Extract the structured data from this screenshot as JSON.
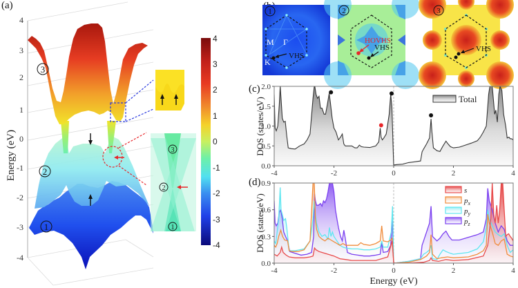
{
  "figure": {
    "panel_labels": [
      "(a)",
      "(b)",
      "(c)",
      "(d)"
    ]
  },
  "panel_a": {
    "ylabel": "Energy (eV)",
    "yticks": [
      "4",
      "3",
      "2",
      "1",
      "0",
      "-1",
      "-2",
      "-3",
      "-4"
    ],
    "band_markers": [
      "3",
      "2",
      "1"
    ],
    "inset_markers": [
      "3",
      "2",
      "1"
    ],
    "colorbar": {
      "ticks": [
        "4",
        "3",
        "2",
        "1",
        "0",
        "-1",
        "-2",
        "-3",
        "-4"
      ],
      "range": [
        -4,
        4
      ],
      "colormap": "jet"
    }
  },
  "panel_b": {
    "maps": [
      {
        "marker": "1",
        "labels": [
          "M",
          "Γ",
          "K",
          "VHS"
        ],
        "theme": "blue"
      },
      {
        "marker": "2",
        "labels": [
          "HOVHS",
          "VHS"
        ],
        "theme": "cyan"
      },
      {
        "marker": "3",
        "labels": [
          "VHS"
        ],
        "theme": "red"
      }
    ],
    "colors": {
      "hovhs": "#e8262a",
      "vhs": "#111111"
    }
  },
  "chart_data": [
    {
      "type": "area",
      "panel": "c",
      "title": "",
      "xlabel": "",
      "ylabel": "DOS (states/eV)",
      "xlim": [
        -4,
        4
      ],
      "ylim": [
        0,
        2.0
      ],
      "xticks": [
        "-4",
        "-2",
        "0",
        "2",
        "4"
      ],
      "yticks": [
        "0.0",
        "0.5",
        "1.0",
        "1.5",
        "2.0"
      ],
      "legend": {
        "position": "top-right",
        "entries": [
          "Total"
        ]
      },
      "series": [
        {
          "name": "Total",
          "color": "#333333",
          "x": [
            -4.0,
            -3.97,
            -3.93,
            -3.88,
            -3.83,
            -3.8,
            -3.77,
            -3.73,
            -3.68,
            -3.63,
            -3.58,
            -3.53,
            -3.48,
            -3.42,
            -3.3,
            -3.15,
            -3.0,
            -2.9,
            -2.8,
            -2.7,
            -2.66,
            -2.64,
            -2.6,
            -2.55,
            -2.5,
            -2.45,
            -2.4,
            -2.33,
            -2.28,
            -2.22,
            -2.16,
            -2.12,
            -2.06,
            -2.0,
            -1.93,
            -1.85,
            -1.78,
            -1.72,
            -1.67,
            -1.62,
            -1.55,
            -1.4,
            -1.3,
            -1.22,
            -1.15,
            -1.08,
            -1.0,
            -0.8,
            -0.6,
            -0.5,
            -0.45,
            -0.42,
            -0.38,
            -0.33,
            -0.25,
            -0.15,
            -0.1,
            -0.06,
            -0.02,
            0.0,
            0.02,
            0.1,
            0.3,
            0.5,
            0.7,
            0.9,
            0.95,
            1.0,
            1.1,
            1.2,
            1.25,
            1.28,
            1.33,
            1.45,
            1.55,
            1.65,
            1.75,
            1.82,
            1.9,
            2.0,
            2.2,
            2.4,
            2.6,
            2.8,
            2.9,
            3.0,
            3.1,
            3.18,
            3.22,
            3.3,
            3.38,
            3.42,
            3.47,
            3.52,
            3.56,
            3.62,
            3.68,
            3.75,
            3.8,
            3.86,
            3.9,
            3.95,
            4.0
          ],
          "y": [
            1.8,
            0.95,
            0.88,
            1.0,
            1.55,
            2.0,
            1.7,
            1.2,
            1.1,
            1.12,
            0.75,
            0.45,
            0.44,
            0.43,
            0.42,
            0.5,
            0.55,
            0.65,
            0.8,
            1.7,
            2.0,
            2.0,
            1.8,
            1.7,
            1.75,
            1.45,
            1.45,
            1.3,
            1.3,
            1.55,
            1.82,
            1.6,
            1.2,
            0.95,
            0.85,
            0.65,
            0.72,
            0.8,
            0.55,
            0.5,
            0.5,
            0.5,
            0.45,
            0.45,
            0.52,
            0.48,
            0.47,
            0.46,
            0.5,
            0.6,
            0.95,
            0.72,
            0.65,
            0.7,
            0.8,
            1.3,
            1.8,
            1.5,
            0.5,
            0.02,
            0.02,
            0.03,
            0.04,
            0.08,
            0.1,
            0.12,
            0.35,
            0.42,
            0.55,
            0.7,
            1.18,
            0.85,
            0.45,
            0.38,
            0.36,
            0.5,
            0.62,
            0.55,
            0.48,
            0.45,
            0.47,
            0.52,
            0.57,
            0.63,
            0.72,
            0.85,
            1.0,
            1.8,
            2.0,
            2.0,
            1.3,
            1.4,
            1.1,
            1.8,
            2.0,
            1.9,
            1.3,
            1.0,
            0.7,
            0.72,
            0.68,
            0.68,
            0.65
          ]
        }
      ],
      "annotations": [
        {
          "label": "VHS",
          "x": -2.1,
          "y": 1.85,
          "color": "#111111"
        },
        {
          "label": "HOVHS",
          "x": -0.42,
          "y": 1.02,
          "color": "#e8262a"
        },
        {
          "label": "VHS",
          "x": -0.07,
          "y": 1.82,
          "color": "#111111"
        },
        {
          "label": "VHS",
          "x": 1.25,
          "y": 1.27,
          "color": "#111111"
        }
      ]
    },
    {
      "type": "area",
      "panel": "d",
      "title": "",
      "xlabel": "Energy (eV)",
      "ylabel": "DOS (states/eV)",
      "xlim": [
        -4,
        4
      ],
      "ylim": [
        0,
        0.9
      ],
      "xticks": [
        "-4",
        "-2",
        "0",
        "2",
        "4"
      ],
      "yticks": [
        "0.0",
        "0.3",
        "0.6",
        "0.9"
      ],
      "legend": {
        "position": "top-right",
        "entries": [
          "s",
          "px",
          "py",
          "pz"
        ]
      },
      "series": [
        {
          "name": "s",
          "legend_label": "s",
          "color": "#e84a4a",
          "x": [
            -4.0,
            -3.9,
            -3.8,
            -3.75,
            -3.7,
            -3.6,
            -3.5,
            -3.3,
            -3.0,
            -2.8,
            -2.7,
            -2.65,
            -2.6,
            -2.5,
            -2.4,
            -2.2,
            -2.0,
            -1.8,
            -1.6,
            -1.4,
            -1.0,
            -0.6,
            -0.4,
            -0.2,
            -0.05,
            0.0,
            0.02,
            0.5,
            1.0,
            1.2,
            1.25,
            1.3,
            1.5,
            1.75,
            2.0,
            2.5,
            3.0,
            3.15,
            3.25,
            3.3,
            3.35,
            3.4,
            3.45,
            3.5,
            3.55,
            3.6,
            3.65,
            3.7,
            3.75,
            3.8,
            3.85,
            3.9,
            3.95,
            4.0
          ],
          "y": [
            0.1,
            0.08,
            0.12,
            0.18,
            0.12,
            0.09,
            0.07,
            0.06,
            0.06,
            0.07,
            0.08,
            0.17,
            0.15,
            0.13,
            0.12,
            0.1,
            0.08,
            0.05,
            0.04,
            0.03,
            0.03,
            0.03,
            0.05,
            0.07,
            0.25,
            0.01,
            0.0,
            0.0,
            0.01,
            0.03,
            0.06,
            0.03,
            0.02,
            0.04,
            0.03,
            0.04,
            0.08,
            0.2,
            0.5,
            0.9,
            0.55,
            0.45,
            0.65,
            0.45,
            0.6,
            0.9,
            0.9,
            0.6,
            0.3,
            0.32,
            0.33,
            0.3,
            0.28,
            0.25
          ]
        },
        {
          "name": "px",
          "legend_label": "p_x",
          "color": "#f08c3c",
          "x": [
            -4.0,
            -3.95,
            -3.9,
            -3.85,
            -3.78,
            -3.72,
            -3.65,
            -3.55,
            -3.5,
            -3.4,
            -3.2,
            -3.0,
            -2.8,
            -2.7,
            -2.66,
            -2.62,
            -2.58,
            -2.5,
            -2.4,
            -2.3,
            -2.2,
            -2.1,
            -2.0,
            -1.9,
            -1.8,
            -1.7,
            -1.6,
            -1.4,
            -1.2,
            -1.1,
            -1.0,
            -0.8,
            -0.6,
            -0.45,
            -0.4,
            -0.35,
            -0.2,
            -0.1,
            -0.05,
            0.0,
            0.02,
            0.5,
            0.9,
            1.0,
            1.1,
            1.2,
            1.25,
            1.3,
            1.45,
            1.6,
            1.8,
            2.0,
            2.5,
            2.8,
            3.0,
            3.1,
            3.15,
            3.2,
            3.3,
            3.4,
            3.5,
            3.6,
            3.7,
            3.8,
            3.9,
            4.0
          ],
          "y": [
            0.2,
            0.18,
            0.22,
            0.3,
            0.37,
            0.3,
            0.26,
            0.25,
            0.14,
            0.13,
            0.13,
            0.15,
            0.25,
            0.9,
            0.9,
            0.5,
            0.38,
            0.3,
            0.27,
            0.25,
            0.28,
            0.26,
            0.24,
            0.22,
            0.2,
            0.22,
            0.2,
            0.2,
            0.2,
            0.23,
            0.21,
            0.2,
            0.22,
            0.25,
            0.42,
            0.25,
            0.24,
            0.26,
            0.28,
            0.01,
            0.0,
            0.01,
            0.04,
            0.06,
            0.08,
            0.12,
            0.32,
            0.1,
            0.05,
            0.06,
            0.07,
            0.06,
            0.07,
            0.1,
            0.14,
            0.2,
            0.55,
            0.45,
            0.35,
            0.22,
            0.2,
            0.25,
            0.27,
            0.1,
            0.08,
            0.07
          ]
        },
        {
          "name": "py",
          "legend_label": "p_y",
          "color": "#5ee6f0",
          "x": [
            -4.0,
            -3.95,
            -3.9,
            -3.85,
            -3.8,
            -3.77,
            -3.73,
            -3.68,
            -3.62,
            -3.58,
            -3.55,
            -3.5,
            -3.45,
            -3.3,
            -3.0,
            -2.8,
            -2.7,
            -2.66,
            -2.62,
            -2.58,
            -2.5,
            -2.4,
            -2.3,
            -2.2,
            -2.15,
            -2.1,
            -2.05,
            -2.0,
            -1.9,
            -1.8,
            -1.7,
            -1.6,
            -1.4,
            -1.2,
            -1.0,
            -0.8,
            -0.6,
            -0.45,
            -0.4,
            -0.35,
            -0.2,
            -0.08,
            -0.04,
            0.0,
            0.02,
            0.5,
            0.9,
            1.0,
            1.1,
            1.2,
            1.25,
            1.3,
            1.45,
            1.55,
            1.65,
            1.75,
            1.9,
            2.0,
            2.5,
            2.8,
            3.0,
            3.1,
            3.15,
            3.2,
            3.3,
            3.4,
            3.5,
            3.6,
            3.7,
            3.8,
            3.9,
            4.0
          ],
          "y": [
            0.25,
            0.22,
            0.35,
            0.5,
            0.85,
            0.6,
            0.55,
            0.48,
            0.5,
            0.4,
            0.3,
            0.15,
            0.14,
            0.14,
            0.16,
            0.25,
            0.5,
            0.7,
            0.55,
            0.45,
            0.35,
            0.3,
            0.32,
            0.27,
            0.4,
            0.3,
            0.35,
            0.3,
            0.25,
            0.2,
            0.18,
            0.17,
            0.16,
            0.16,
            0.15,
            0.15,
            0.16,
            0.18,
            0.25,
            0.18,
            0.18,
            0.35,
            0.64,
            0.01,
            0.0,
            0.02,
            0.05,
            0.1,
            0.12,
            0.15,
            0.2,
            0.05,
            0.04,
            0.1,
            0.15,
            0.13,
            0.11,
            0.1,
            0.12,
            0.16,
            0.24,
            0.4,
            0.6,
            0.5,
            0.42,
            0.35,
            0.32,
            0.3,
            0.33,
            0.2,
            0.12,
            0.15
          ]
        },
        {
          "name": "pz",
          "legend_label": "p_z",
          "color": "#7a3ff0",
          "x": [
            -4.0,
            -3.97,
            -3.93,
            -3.88,
            -3.83,
            -3.78,
            -3.73,
            -3.68,
            -3.62,
            -3.55,
            -3.48,
            -3.3,
            -3.1,
            -2.9,
            -2.75,
            -2.68,
            -2.65,
            -2.62,
            -2.58,
            -2.52,
            -2.45,
            -2.4,
            -2.35,
            -2.3,
            -2.25,
            -2.2,
            -2.15,
            -2.1,
            -2.05,
            -2.0,
            -1.95,
            -1.9,
            -1.85,
            -1.78,
            -1.72,
            -1.67,
            -1.62,
            -1.55,
            -1.4,
            -1.2,
            -1.0,
            -0.8,
            -0.6,
            -0.45,
            -0.4,
            -0.35,
            -0.2,
            -0.1,
            -0.05,
            0.0,
            0.02,
            0.5,
            0.9,
            0.95,
            1.0,
            1.1,
            1.2,
            1.25,
            1.3,
            1.45,
            1.55,
            1.65,
            1.75,
            1.85,
            1.95,
            2.2,
            2.5,
            2.8,
            3.0,
            3.1,
            3.15,
            3.2,
            3.3,
            3.4,
            3.5,
            3.6,
            3.7,
            3.8,
            3.9,
            4.0
          ],
          "y": [
            0.7,
            0.45,
            0.42,
            0.45,
            0.57,
            0.6,
            0.5,
            0.35,
            0.3,
            0.25,
            0.13,
            0.11,
            0.09,
            0.1,
            0.12,
            0.3,
            0.78,
            0.7,
            0.65,
            0.65,
            0.67,
            0.64,
            0.7,
            0.68,
            0.72,
            0.8,
            0.9,
            0.9,
            0.9,
            0.8,
            0.6,
            0.5,
            0.4,
            0.3,
            0.25,
            0.37,
            0.28,
            0.12,
            0.1,
            0.09,
            0.08,
            0.08,
            0.09,
            0.1,
            0.23,
            0.12,
            0.13,
            0.2,
            0.48,
            0.01,
            0.0,
            0.02,
            0.05,
            0.2,
            0.25,
            0.35,
            0.45,
            0.64,
            0.3,
            0.25,
            0.28,
            0.33,
            0.36,
            0.3,
            0.26,
            0.26,
            0.29,
            0.32,
            0.35,
            0.5,
            0.84,
            0.7,
            0.6,
            0.45,
            0.35,
            0.42,
            0.38,
            0.25,
            0.2,
            0.2
          ]
        }
      ]
    }
  ]
}
